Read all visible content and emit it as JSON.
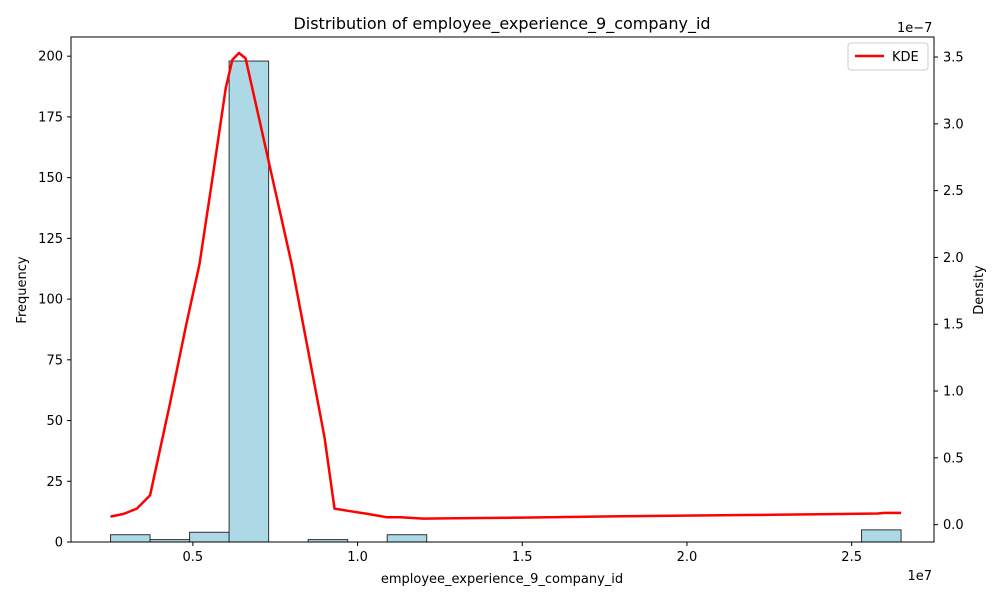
{
  "chart_data": {
    "type": "bar",
    "title": "Distribution of employee_experience_9_company_id",
    "xlabel": "employee_experience_9_company_id",
    "ylabel": "Frequency",
    "y2label": "Density",
    "x_offset_label": "1e7",
    "y2_offset_label": "1e−7",
    "xlim": [
      1300000,
      27500000
    ],
    "ylim": [
      0,
      207.9
    ],
    "y2lim": [
      -1.3e-08,
      3.65e-07
    ],
    "x_ticks": [
      {
        "value": 5000000,
        "label": "0.5"
      },
      {
        "value": 10000000,
        "label": "1.0"
      },
      {
        "value": 15000000,
        "label": "1.5"
      },
      {
        "value": 20000000,
        "label": "2.0"
      },
      {
        "value": 25000000,
        "label": "2.5"
      }
    ],
    "y_ticks": [
      {
        "value": 0,
        "label": "0"
      },
      {
        "value": 25,
        "label": "25"
      },
      {
        "value": 50,
        "label": "50"
      },
      {
        "value": 75,
        "label": "75"
      },
      {
        "value": 100,
        "label": "100"
      },
      {
        "value": 125,
        "label": "125"
      },
      {
        "value": 150,
        "label": "150"
      },
      {
        "value": 175,
        "label": "175"
      },
      {
        "value": 200,
        "label": "200"
      }
    ],
    "y2_ticks": [
      {
        "value": 0,
        "label": "0.0"
      },
      {
        "value": 5e-08,
        "label": "0.5"
      },
      {
        "value": 1e-07,
        "label": "1.0"
      },
      {
        "value": 1.5e-07,
        "label": "1.5"
      },
      {
        "value": 2e-07,
        "label": "2.0"
      },
      {
        "value": 2.5e-07,
        "label": "2.5"
      },
      {
        "value": 3e-07,
        "label": "3.0"
      },
      {
        "value": 3.5e-07,
        "label": "3.5"
      }
    ],
    "histogram": {
      "bin_edges": [
        2500000,
        3700000,
        4900000,
        6100000,
        7300000,
        8500000,
        9700000,
        10900000,
        12100000,
        13300000,
        14500000,
        15700000,
        16900000,
        18100000,
        19300000,
        20500000,
        21700000,
        22900000,
        24100000,
        25300000,
        26500000
      ],
      "counts": [
        3,
        1,
        4,
        198,
        0,
        1,
        0,
        3,
        0,
        0,
        0,
        0,
        0,
        0,
        0,
        0,
        0,
        0,
        0,
        5
      ],
      "fill": "#add8e6",
      "edge": "#333333"
    },
    "series": [
      {
        "name": "KDE",
        "color": "#ff0000",
        "x": [
          2500000,
          2900000,
          3300000,
          3700000,
          4300000,
          4800000,
          5200000,
          5600000,
          6000000,
          6200000,
          6400000,
          6600000,
          7000000,
          7500000,
          8000000,
          8500000,
          9000000,
          9300000,
          9800000,
          10300000,
          10900000,
          11300000,
          12000000,
          13000000,
          15000000,
          18000000,
          21000000,
          24000000,
          25800000,
          26000000,
          26500000
        ],
        "y": [
          6e-09,
          8e-09,
          1.2e-08,
          2.2e-08,
          9e-08,
          1.5e-07,
          1.95e-07,
          2.6e-07,
          3.27e-07,
          3.48e-07,
          3.53e-07,
          3.49e-07,
          3.05e-07,
          2.5e-07,
          1.95e-07,
          1.3e-07,
          6.5e-08,
          1.2e-08,
          1e-08,
          8e-09,
          5.5e-09,
          5.5e-09,
          4.5e-09,
          4.8e-09,
          5.3e-09,
          6.2e-09,
          7e-09,
          7.8e-09,
          8.3e-09,
          8.8e-09,
          8.8e-09
        ]
      }
    ],
    "legend": {
      "position": "top-right",
      "entries": [
        "KDE"
      ]
    },
    "grid": false
  }
}
